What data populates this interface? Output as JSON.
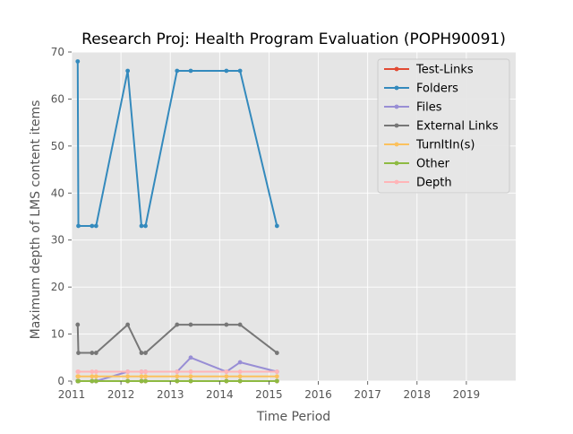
{
  "chart_data": {
    "type": "line",
    "title": "Research Proj: Health Program Evaluation (POPH90091)",
    "xlabel": "Time Period",
    "ylabel": "Maximum depth of LMS content items",
    "xlim": [
      2011,
      2020
    ],
    "ylim": [
      0,
      70
    ],
    "xticks": [
      "2011",
      "2012",
      "2013",
      "2014",
      "2015",
      "2016",
      "2017",
      "2018",
      "2019"
    ],
    "yticks": [
      "0",
      "10",
      "20",
      "30",
      "40",
      "50",
      "60",
      "70"
    ],
    "grid": true,
    "legend_position": "top-right",
    "x": [
      "2011-02-15",
      "2011-02-20",
      "2011-06-01",
      "2011-07-01",
      "2012-02-20",
      "2012-06-01",
      "2012-07-01",
      "2013-02-20",
      "2013-06-01",
      "2014-02-20",
      "2014-06-01",
      "2015-03-01"
    ],
    "series": [
      {
        "name": "Test-Links",
        "color": "#e24a33",
        "values": [
          0,
          0,
          0,
          0,
          0,
          0,
          0,
          0,
          0,
          0,
          0,
          0
        ]
      },
      {
        "name": "Folders",
        "color": "#348abd",
        "values": [
          68,
          33,
          33,
          33,
          66,
          33,
          33,
          66,
          66,
          66,
          66,
          33
        ]
      },
      {
        "name": "Files",
        "color": "#988ed5",
        "values": [
          0,
          0,
          0,
          0,
          2,
          2,
          2,
          2,
          5,
          2,
          4,
          2
        ]
      },
      {
        "name": "External Links",
        "color": "#777777",
        "values": [
          12,
          6,
          6,
          6,
          12,
          6,
          6,
          12,
          12,
          12,
          12,
          6
        ]
      },
      {
        "name": "TurnItIn(s)",
        "color": "#fbc15e",
        "values": [
          1,
          1,
          1,
          1,
          1,
          1,
          1,
          1,
          1,
          1,
          1,
          1
        ]
      },
      {
        "name": "Other",
        "color": "#8eba42",
        "values": [
          0,
          0,
          0,
          0,
          0,
          0,
          0,
          0,
          0,
          0,
          0,
          0
        ]
      },
      {
        "name": "Depth",
        "color": "#ffb5b8",
        "values": [
          2,
          2,
          2,
          2,
          2,
          2,
          2,
          2,
          2,
          2,
          2,
          2
        ]
      }
    ]
  }
}
